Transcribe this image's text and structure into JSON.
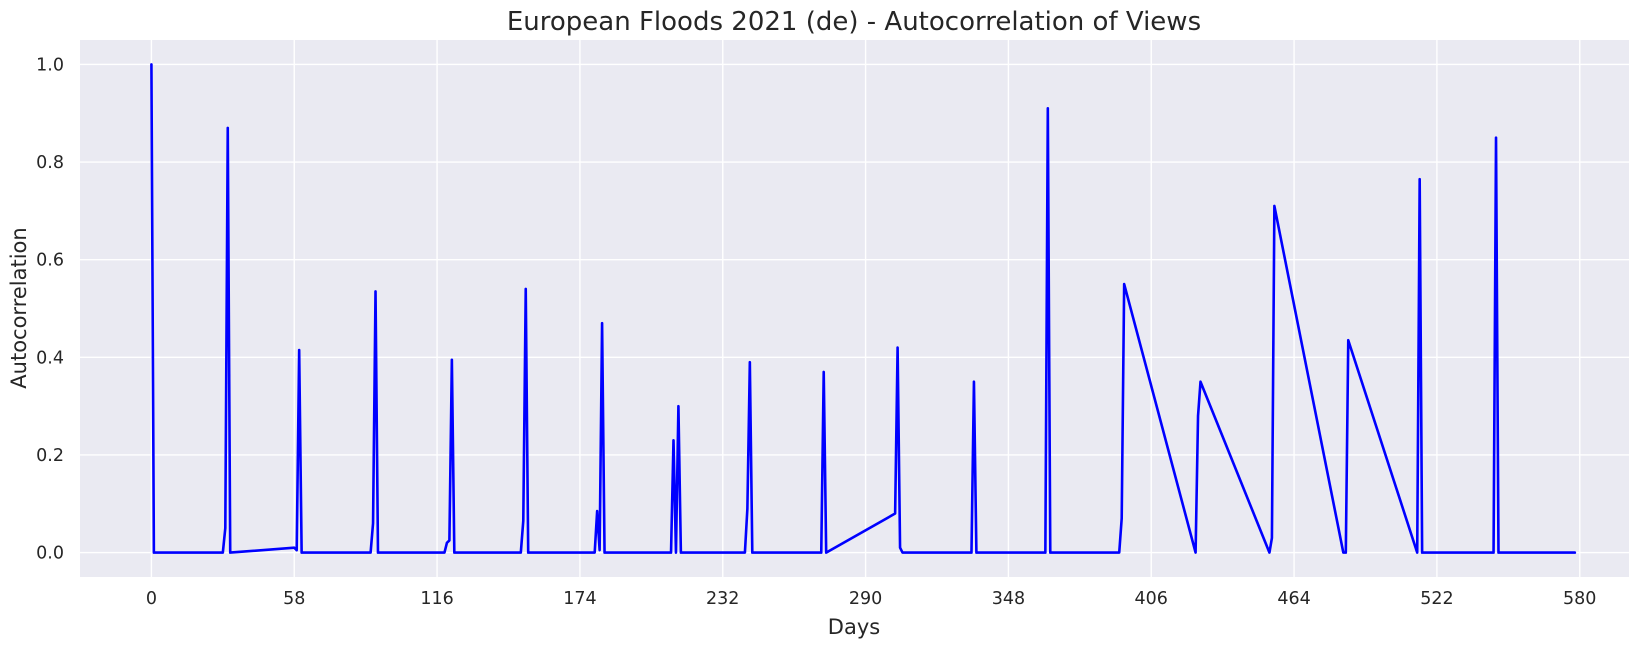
{
  "chart_data": {
    "type": "line",
    "title": "European Floods 2021 (de) - Autocorrelation of Views",
    "xlabel": "Days",
    "ylabel": "Autocorrelation",
    "xlim": [
      -29,
      600
    ],
    "ylim": [
      -0.05,
      1.05
    ],
    "xticks": [
      0,
      58,
      116,
      174,
      232,
      290,
      348,
      406,
      464,
      522,
      580
    ],
    "yticks": [
      0.0,
      0.2,
      0.4,
      0.6,
      0.8,
      1.0
    ],
    "ytick_labels": [
      "0.0",
      "0.2",
      "0.4",
      "0.6",
      "0.8",
      "1.0"
    ],
    "grid": true,
    "background": "#eaeaf2",
    "series": [
      {
        "color": "#0000ff",
        "x": [
          0,
          1,
          29,
          30,
          31,
          32,
          58,
          59,
          60,
          61,
          62,
          89,
          90,
          91,
          92,
          119,
          120,
          121,
          122,
          123,
          150,
          151,
          152,
          153,
          180,
          181,
          182,
          183,
          184,
          211,
          212,
          213,
          214,
          215,
          241,
          242,
          243,
          244,
          245,
          272,
          273,
          274,
          302,
          303,
          304,
          305,
          333,
          334,
          335,
          363,
          364,
          365,
          393,
          394,
          395,
          424,
          425,
          426,
          454,
          455,
          456,
          484,
          485,
          486,
          514,
          515,
          516,
          545,
          546,
          547,
          578
        ],
        "values": [
          1.0,
          0.0,
          0.0,
          0.05,
          0.87,
          0.0,
          0.01,
          0.005,
          0.415,
          0.0,
          0.0,
          0.0,
          0.06,
          0.535,
          0.0,
          0.0,
          0.02,
          0.025,
          0.395,
          0.0,
          0.0,
          0.065,
          0.54,
          0.0,
          0.0,
          0.085,
          0.005,
          0.47,
          0.0,
          0.0,
          0.23,
          0.0,
          0.3,
          0.0,
          0.0,
          0.09,
          0.39,
          0.0,
          0.0,
          0.0,
          0.37,
          0.0,
          0.08,
          0.42,
          0.01,
          0.0,
          0.0,
          0.35,
          0.0,
          0.0,
          0.91,
          0.0,
          0.0,
          0.07,
          0.55,
          0.0,
          0.28,
          0.35,
          0.0,
          0.03,
          0.71,
          0.0,
          0.0,
          0.435,
          0.0,
          0.765,
          0.0,
          0.0,
          0.85,
          0.0,
          0.0
        ]
      }
    ]
  }
}
